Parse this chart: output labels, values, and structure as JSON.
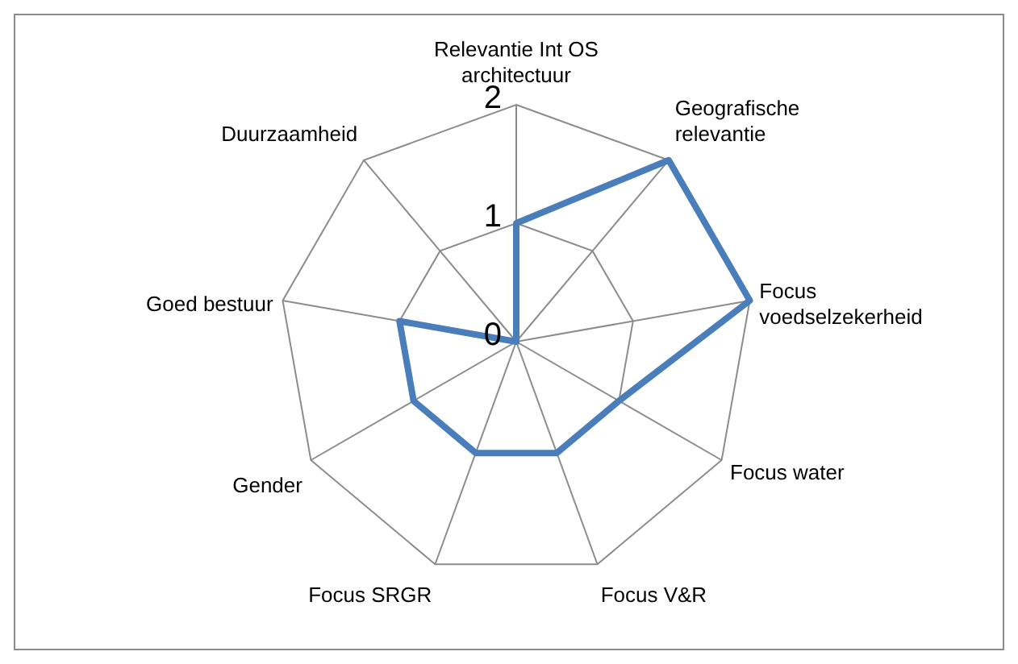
{
  "chart_data": {
    "type": "radar",
    "categories": [
      "Relevantie Int OS architectuur",
      "Geografische relevantie",
      "Focus voedselzekerheid",
      "Focus water",
      "Focus V&R",
      "Focus SRGR",
      "Gender",
      "Goed bestuur",
      "Duurzaamheid"
    ],
    "series": [
      {
        "color": "#4a7ebb",
        "values": [
          1,
          2,
          2,
          1,
          1,
          1,
          1,
          1,
          0
        ]
      }
    ],
    "ylim": [
      0,
      2
    ],
    "yticks": [
      0,
      1,
      2
    ],
    "grid": true,
    "marker": "none",
    "line_style": "solid"
  }
}
